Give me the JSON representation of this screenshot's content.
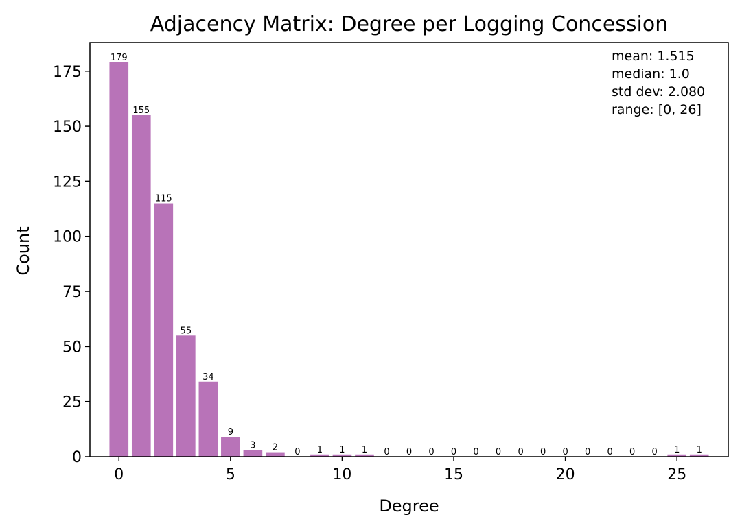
{
  "chart_data": {
    "type": "bar",
    "title": "Adjacency Matrix: Degree per Logging Concession",
    "xlabel": "Degree",
    "ylabel": "Count",
    "x": [
      0,
      1,
      2,
      3,
      4,
      5,
      6,
      7,
      8,
      9,
      10,
      11,
      12,
      13,
      14,
      15,
      16,
      17,
      18,
      19,
      20,
      21,
      22,
      23,
      24,
      25,
      26
    ],
    "values": [
      179,
      155,
      115,
      55,
      34,
      9,
      3,
      2,
      0,
      1,
      1,
      1,
      0,
      0,
      0,
      0,
      0,
      0,
      0,
      0,
      0,
      0,
      0,
      0,
      0,
      1,
      1
    ],
    "bar_labels": [
      "179",
      "155",
      "115",
      "55",
      "34",
      "9",
      "3",
      "2",
      "0",
      "1",
      "1",
      "1",
      "0",
      "0",
      "0",
      "0",
      "0",
      "0",
      "0",
      "0",
      "0",
      "0",
      "0",
      "0",
      "0",
      "1",
      "1"
    ],
    "xlim": [
      -1.3,
      27.3
    ],
    "ylim": [
      0,
      188
    ],
    "xticks": [
      0,
      5,
      10,
      15,
      20,
      25
    ],
    "xtick_labels": [
      "0",
      "5",
      "10",
      "15",
      "20",
      "25"
    ],
    "yticks": [
      0,
      25,
      50,
      75,
      100,
      125,
      150,
      175
    ],
    "ytick_labels": [
      "0",
      "25",
      "50",
      "75",
      "100",
      "125",
      "150",
      "175"
    ],
    "bar_color": "#b873b8",
    "grid": false,
    "annotation": {
      "placement": "top-right",
      "lines": [
        "mean: 1.515",
        "median: 1.0",
        "std dev: 2.080",
        "range: [0, 26]"
      ]
    }
  }
}
